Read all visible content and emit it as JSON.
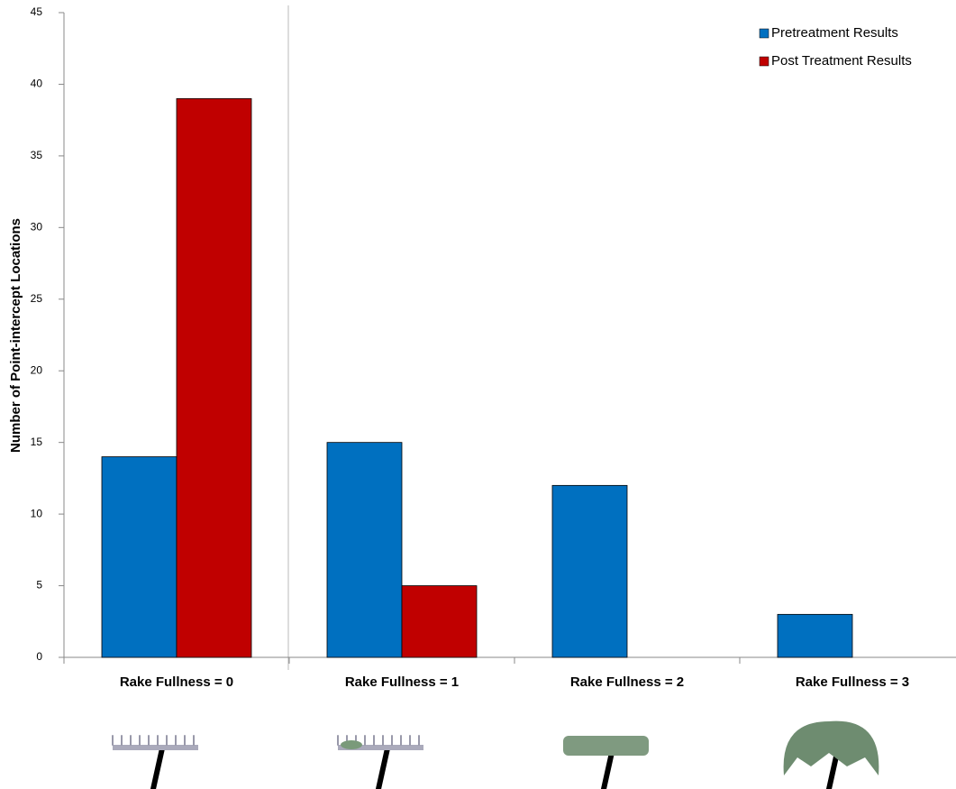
{
  "chart_data": {
    "type": "bar",
    "y_label": "Number of Point-intercept Locations",
    "categories": [
      "Rake Fullness = 0",
      "Rake Fullness = 1",
      "Rake Fullness = 2",
      "Rake Fullness = 3"
    ],
    "series": [
      {
        "name": "Pretreatment Results",
        "color": "#0070c0",
        "values": [
          14,
          15,
          12,
          3
        ]
      },
      {
        "name": "Post Treatment Results",
        "color": "#c00000",
        "values": [
          39,
          5,
          0,
          0
        ]
      }
    ],
    "ylim": [
      0,
      45
    ],
    "yticks": [
      0,
      5,
      10,
      15,
      20,
      25,
      30,
      35,
      40,
      45
    ],
    "grid": false,
    "legend": "top-right"
  }
}
